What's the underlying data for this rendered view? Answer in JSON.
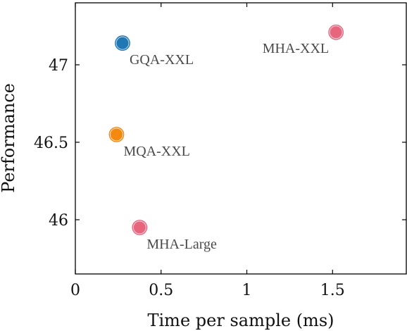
{
  "chart_data": {
    "type": "scatter",
    "xlabel": "Time per sample (ms)",
    "ylabel": "Performance",
    "xlim": [
      0,
      1.93
    ],
    "ylim": [
      45.65,
      47.4
    ],
    "xticks": [
      0,
      0.5,
      1,
      1.5
    ],
    "xtick_labels": [
      "0",
      "0.5",
      "1",
      "1.5"
    ],
    "yticks": [
      46,
      46.5,
      47
    ],
    "ytick_labels": [
      "46",
      "46.5",
      "47"
    ],
    "grid": false,
    "points": [
      {
        "label": "MHA-XXL",
        "x": 1.52,
        "y": 47.21,
        "color": "#e8657e",
        "label_side": "left"
      },
      {
        "label": "GQA-XXL",
        "x": 0.275,
        "y": 47.14,
        "color": "#1f77b4",
        "label_side": "right"
      },
      {
        "label": "MQA-XXL",
        "x": 0.24,
        "y": 46.55,
        "color": "#f5890f",
        "label_side": "right"
      },
      {
        "label": "MHA-Large",
        "x": 0.375,
        "y": 45.95,
        "color": "#e8657e",
        "label_side": "right"
      }
    ]
  }
}
